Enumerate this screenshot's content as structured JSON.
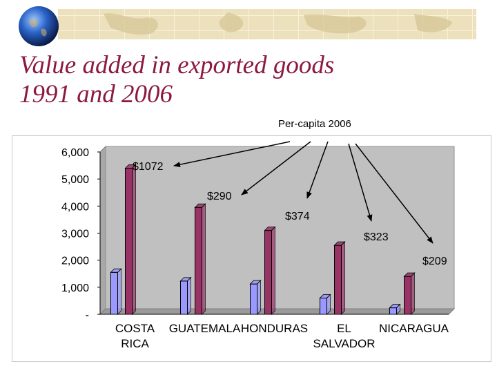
{
  "slide": {
    "title_lines": [
      "Value added in exported goods",
      "1991 and 2006"
    ],
    "callout_title": "Per-capita 2006",
    "colors": {
      "title": "#8c1a3e",
      "banner": "#ece1bc"
    }
  },
  "chart_data": {
    "type": "bar",
    "categories": [
      [
        "COSTA",
        "RICA"
      ],
      [
        "GUATEMALA"
      ],
      [
        "HONDURAS"
      ],
      [
        "EL",
        "SALVADOR"
      ],
      [
        "NICARAGUA"
      ]
    ],
    "series": [
      {
        "values": [
          1550,
          1230,
          1120,
          600,
          240
        ],
        "color": "#9999ff"
      },
      {
        "values": [
          5400,
          3950,
          3100,
          2550,
          1400
        ],
        "color": "#993366"
      }
    ],
    "ylim": [
      0,
      6000
    ],
    "yticks": [
      "-",
      "1,000",
      "2,000",
      "3,000",
      "4,000",
      "5,000",
      "6,000"
    ],
    "grid": false,
    "plot_background": "#c0c0c0",
    "annotations": [
      "$1072",
      "$290",
      "$374",
      "$323",
      "$209"
    ]
  }
}
